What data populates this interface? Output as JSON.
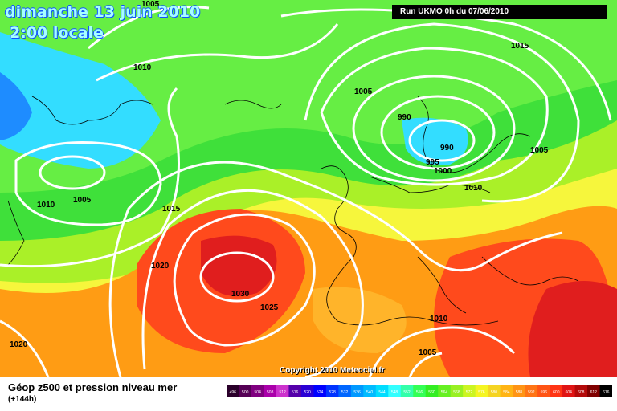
{
  "header": {
    "date": "dimanche 13 juin 2010",
    "time": "2:00 locale",
    "run": "Run UKMO 0h du 07/06/2010"
  },
  "map": {
    "variable": "Géop z500 et pression niveau mer",
    "lead_time": "(+144h)",
    "copyright": "Copyright 2010 Meteociel.fr",
    "isobar_labels": [
      {
        "id": "iso-1005-top",
        "text": "1005"
      },
      {
        "id": "iso-1010-nw",
        "text": "1010"
      },
      {
        "id": "iso-1005-north",
        "text": "1005"
      },
      {
        "id": "iso-990-a",
        "text": "990"
      },
      {
        "id": "iso-990-b",
        "text": "990"
      },
      {
        "id": "iso-995",
        "text": "995"
      },
      {
        "id": "iso-1000",
        "text": "1000"
      },
      {
        "id": "iso-1010-east",
        "text": "1010"
      },
      {
        "id": "iso-1015-ne",
        "text": "1015"
      },
      {
        "id": "iso-1005-ne",
        "text": "1005"
      },
      {
        "id": "iso-1010-west",
        "text": "1010"
      },
      {
        "id": "iso-1005-west",
        "text": "1005"
      },
      {
        "id": "iso-1015-mid",
        "text": "1015"
      },
      {
        "id": "iso-1020",
        "text": "1020"
      },
      {
        "id": "iso-1030",
        "text": "1030"
      },
      {
        "id": "iso-1025",
        "text": "1025"
      },
      {
        "id": "iso-1020-sw",
        "text": "1020"
      },
      {
        "id": "iso-1010-med",
        "text": "1010"
      },
      {
        "id": "iso-1005-sahara",
        "text": "1005"
      }
    ],
    "colors": {
      "blue": "#1e8cff",
      "cyan": "#33ddff",
      "green": "#3fe03a",
      "yellowgreen": "#aaf028",
      "yellow": "#f6f63c",
      "orange": "#ff9c14",
      "red": "#ff4a1c",
      "darkred": "#e01e1e",
      "isobar": "#ffffff"
    }
  },
  "scale": {
    "ticks": [
      "496",
      "500",
      "504",
      "508",
      "512",
      "516",
      "520",
      "524",
      "528",
      "532",
      "536",
      "540",
      "544",
      "548",
      "552",
      "556",
      "560",
      "564",
      "568",
      "572",
      "576",
      "580",
      "584",
      "588",
      "592",
      "596",
      "600",
      "604",
      "608",
      "612",
      "616"
    ],
    "colors": [
      "#2a002a",
      "#550055",
      "#800080",
      "#aa00aa",
      "#cc33cc",
      "#5500aa",
      "#2a00d4",
      "#0000ff",
      "#0033ff",
      "#0066ff",
      "#0099ff",
      "#00bbff",
      "#00ddff",
      "#33ffff",
      "#33ffaa",
      "#33ff55",
      "#33ee22",
      "#66f022",
      "#99f022",
      "#ccf522",
      "#f5f522",
      "#f5d422",
      "#ffb414",
      "#ff9414",
      "#ff7414",
      "#ff5414",
      "#ff3414",
      "#e01414",
      "#b40a0a",
      "#800000",
      "#000000"
    ]
  }
}
